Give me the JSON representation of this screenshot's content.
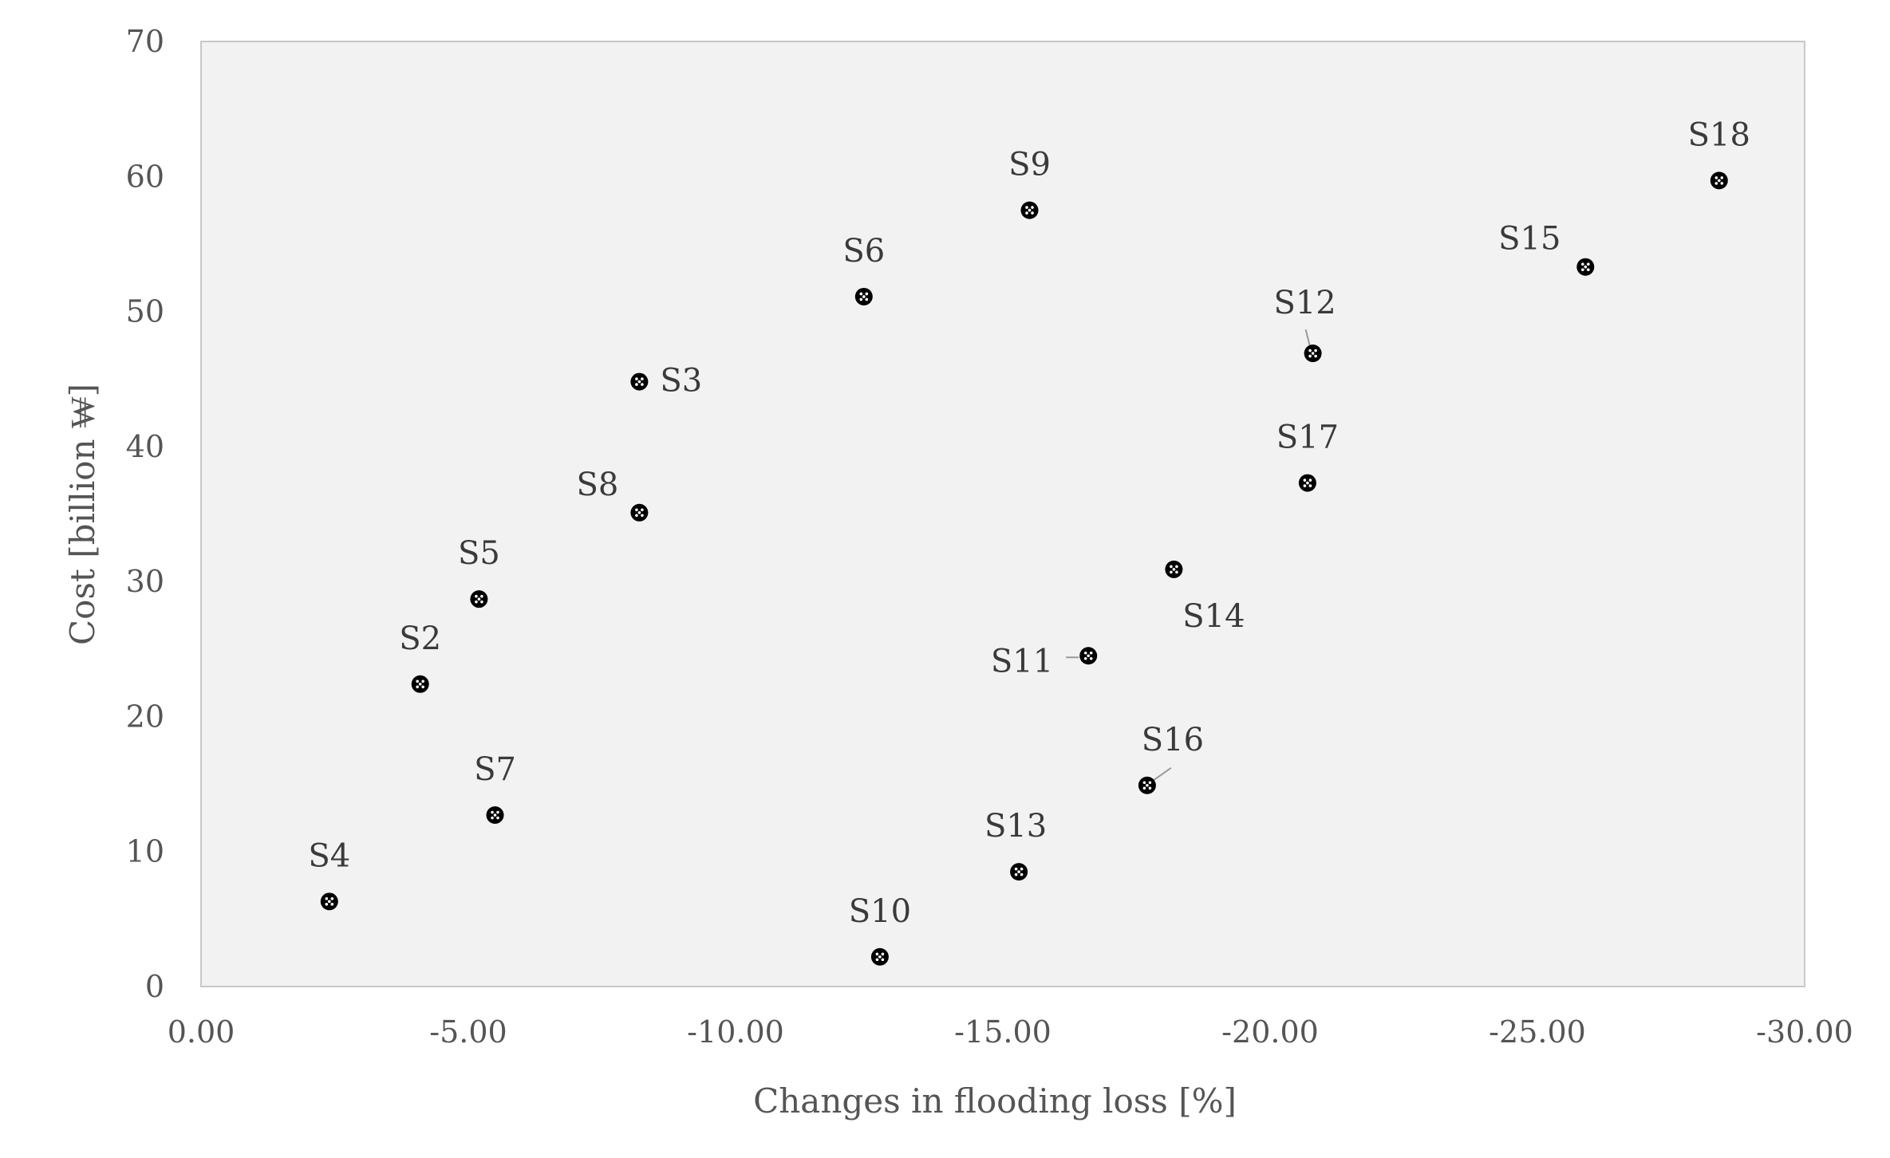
{
  "chart_data": {
    "type": "scatter",
    "xlabel": "Changes in flooding loss [%]",
    "ylabel": "Cost [billion ₩]",
    "xlim": [
      0,
      -30
    ],
    "ylim": [
      0,
      70
    ],
    "x_axis_reversed": true,
    "x_ticks": [
      0,
      -5,
      -10,
      -15,
      -20,
      -25,
      -30
    ],
    "x_tick_labels": [
      "0.00",
      "-5.00",
      "-10.00",
      "-15.00",
      "-20.00",
      "-25.00",
      "-30.00"
    ],
    "y_ticks": [
      0,
      10,
      20,
      30,
      40,
      50,
      60,
      70
    ],
    "y_tick_labels": [
      "0",
      "10",
      "20",
      "30",
      "40",
      "50",
      "60",
      "70"
    ],
    "grid": false,
    "plot_background": "#f2f2f2",
    "marker_color": "#000000",
    "points": [
      {
        "label": "S2",
        "x": -4.1,
        "y": 22.4
      },
      {
        "label": "S3",
        "x": -8.2,
        "y": 44.8
      },
      {
        "label": "S4",
        "x": -2.4,
        "y": 6.3
      },
      {
        "label": "S5",
        "x": -5.2,
        "y": 28.7
      },
      {
        "label": "S6",
        "x": -12.4,
        "y": 51.1
      },
      {
        "label": "S7",
        "x": -5.5,
        "y": 12.7
      },
      {
        "label": "S8",
        "x": -8.2,
        "y": 35.1
      },
      {
        "label": "S9",
        "x": -15.5,
        "y": 57.5
      },
      {
        "label": "S10",
        "x": -12.7,
        "y": 2.2
      },
      {
        "label": "S11",
        "x": -16.6,
        "y": 24.5
      },
      {
        "label": "S12",
        "x": -20.8,
        "y": 46.9
      },
      {
        "label": "S13",
        "x": -15.3,
        "y": 8.5
      },
      {
        "label": "S14",
        "x": -18.2,
        "y": 30.9
      },
      {
        "label": "S15",
        "x": -25.9,
        "y": 53.3
      },
      {
        "label": "S16",
        "x": -17.7,
        "y": 14.9
      },
      {
        "label": "S17",
        "x": -20.7,
        "y": 37.3
      },
      {
        "label": "S18",
        "x": -28.4,
        "y": 59.7
      }
    ]
  }
}
